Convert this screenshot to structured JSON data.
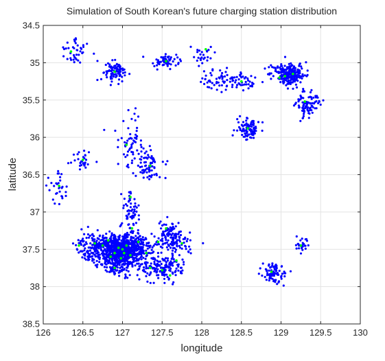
{
  "chart_data": {
    "type": "scatter",
    "title": "Simulation of South Korean's future charging station distribution",
    "xlabel": "longitude",
    "ylabel": "latitude",
    "xlim": [
      126,
      130
    ],
    "ylim": [
      34.5,
      38.5
    ],
    "y_axis_reversed": true,
    "grid": true,
    "xticks": [
      126,
      126.5,
      127,
      127.5,
      128,
      128.5,
      129,
      129.5,
      130
    ],
    "xtick_labels": [
      "126",
      "126.5",
      "127",
      "127.5",
      "128",
      "128.5",
      "129",
      "129.5",
      "130"
    ],
    "yticks": [
      34.5,
      35,
      35.5,
      36,
      36.5,
      37,
      37.5,
      38,
      38.5
    ],
    "ytick_labels": [
      "34.5",
      "35",
      "35.5",
      "36",
      "36.5",
      "37",
      "37.5",
      "38",
      "38.5"
    ],
    "series": [
      {
        "role": "charging stations",
        "color": "#0000ff",
        "marker": "dot",
        "clusters": [
          {
            "center": [
              127.0,
              37.52
            ],
            "spread": [
              0.14,
              0.1
            ],
            "count": 650
          },
          {
            "center": [
              126.7,
              37.48
            ],
            "spread": [
              0.14,
              0.1
            ],
            "count": 220
          },
          {
            "center": [
              127.2,
              37.45
            ],
            "spread": [
              0.09,
              0.09
            ],
            "count": 90
          },
          {
            "center": [
              126.95,
              37.72
            ],
            "spread": [
              0.12,
              0.07
            ],
            "count": 90
          },
          {
            "center": [
              127.5,
              37.75
            ],
            "spread": [
              0.13,
              0.09
            ],
            "count": 150
          },
          {
            "center": [
              127.65,
              37.42
            ],
            "spread": [
              0.14,
              0.08
            ],
            "count": 90
          },
          {
            "center": [
              127.6,
              37.25
            ],
            "spread": [
              0.07,
              0.06
            ],
            "count": 60
          },
          {
            "center": [
              127.1,
              37.0
            ],
            "spread": [
              0.06,
              0.17
            ],
            "count": 70
          },
          {
            "center": [
              127.35,
              36.4
            ],
            "spread": [
              0.08,
              0.1
            ],
            "count": 70
          },
          {
            "center": [
              127.1,
              36.05
            ],
            "spread": [
              0.08,
              0.17
            ],
            "count": 60
          },
          {
            "center": [
              126.5,
              36.3
            ],
            "spread": [
              0.07,
              0.07
            ],
            "count": 30
          },
          {
            "center": [
              126.2,
              36.7
            ],
            "spread": [
              0.06,
              0.12
            ],
            "count": 30
          },
          {
            "center": [
              126.4,
              34.85
            ],
            "spread": [
              0.09,
              0.09
            ],
            "count": 40
          },
          {
            "center": [
              126.9,
              35.12
            ],
            "spread": [
              0.08,
              0.07
            ],
            "count": 90
          },
          {
            "center": [
              127.55,
              34.98
            ],
            "spread": [
              0.09,
              0.06
            ],
            "count": 60
          },
          {
            "center": [
              128.0,
              34.9
            ],
            "spread": [
              0.07,
              0.07
            ],
            "count": 25
          },
          {
            "center": [
              128.2,
              35.2
            ],
            "spread": [
              0.12,
              0.09
            ],
            "count": 45
          },
          {
            "center": [
              128.5,
              35.25
            ],
            "spread": [
              0.15,
              0.07
            ],
            "count": 50
          },
          {
            "center": [
              128.58,
              35.88
            ],
            "spread": [
              0.07,
              0.07
            ],
            "count": 90
          },
          {
            "center": [
              129.1,
              35.15
            ],
            "spread": [
              0.1,
              0.07
            ],
            "count": 230
          },
          {
            "center": [
              129.35,
              35.55
            ],
            "spread": [
              0.08,
              0.09
            ],
            "count": 90
          },
          {
            "center": [
              128.9,
              37.82
            ],
            "spread": [
              0.07,
              0.06
            ],
            "count": 80
          },
          {
            "center": [
              129.25,
              37.45
            ],
            "spread": [
              0.04,
              0.05
            ],
            "count": 25
          }
        ]
      },
      {
        "role": "station centers",
        "color": "#00ff00",
        "marker": "dot",
        "points": [
          [
            127.0,
            37.5
          ],
          [
            127.02,
            37.55
          ],
          [
            126.95,
            37.48
          ],
          [
            126.9,
            37.55
          ],
          [
            127.05,
            37.45
          ],
          [
            126.98,
            37.62
          ],
          [
            126.85,
            37.6
          ],
          [
            127.1,
            37.58
          ],
          [
            126.75,
            37.45
          ],
          [
            126.65,
            37.42
          ],
          [
            126.82,
            37.38
          ],
          [
            126.45,
            37.45
          ],
          [
            126.9,
            37.75
          ],
          [
            127.2,
            37.4
          ],
          [
            127.3,
            37.55
          ],
          [
            127.45,
            37.4
          ],
          [
            127.55,
            37.22
          ],
          [
            127.75,
            37.42
          ],
          [
            127.5,
            37.78
          ],
          [
            127.68,
            37.65
          ],
          [
            127.35,
            37.75
          ],
          [
            127.6,
            37.85
          ],
          [
            127.12,
            37.22
          ],
          [
            127.1,
            36.8
          ],
          [
            127.35,
            36.38
          ],
          [
            127.05,
            36.1
          ],
          [
            126.5,
            36.3
          ],
          [
            126.2,
            36.65
          ],
          [
            126.35,
            34.85
          ],
          [
            126.9,
            35.12
          ],
          [
            127.55,
            34.98
          ],
          [
            128.05,
            34.82
          ],
          [
            128.5,
            35.25
          ],
          [
            128.58,
            35.88
          ],
          [
            129.15,
            35.15
          ],
          [
            129.05,
            35.18
          ],
          [
            128.98,
            35.2
          ],
          [
            129.3,
            35.52
          ],
          [
            128.88,
            37.8
          ],
          [
            129.25,
            37.45
          ]
        ]
      }
    ]
  }
}
